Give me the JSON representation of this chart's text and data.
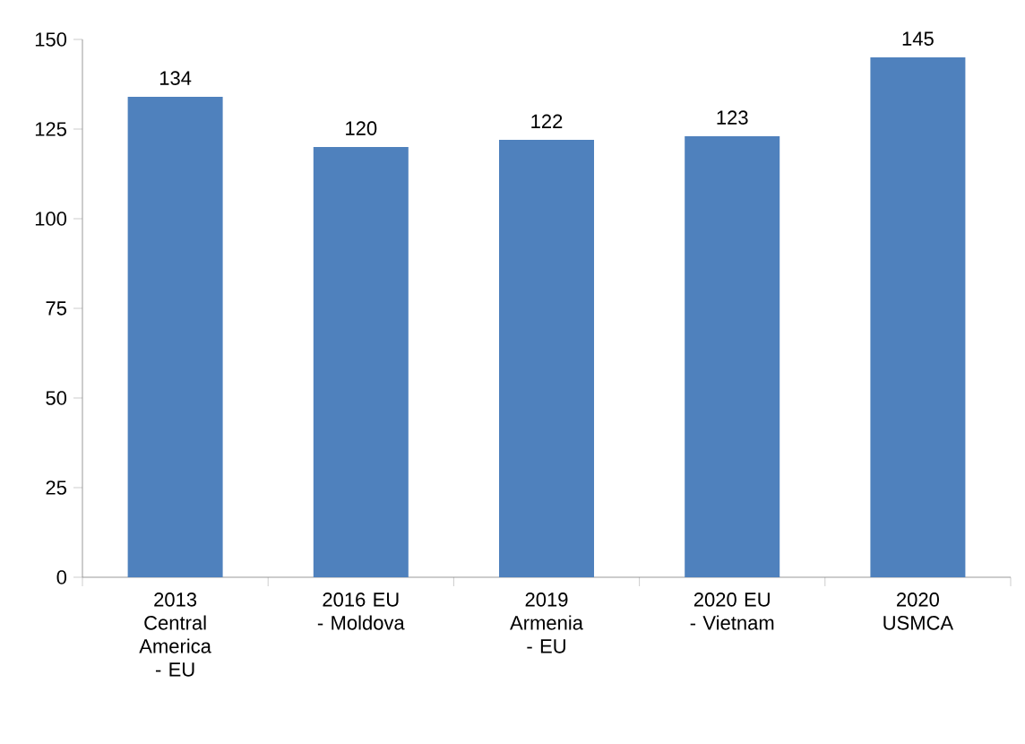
{
  "chart_data": {
    "type": "bar",
    "categories": [
      "2013 Central America - EU",
      "2016 EU - Moldova",
      "2019 Armenia - EU",
      "2020 EU - Vietnam",
      "2020 USMCA"
    ],
    "values": [
      134,
      120,
      122,
      123,
      145
    ],
    "color": "#4f81bd",
    "ylim": [
      0,
      150
    ],
    "yticks": [
      0,
      25,
      50,
      75,
      100,
      125,
      150
    ],
    "data_labels": true
  }
}
